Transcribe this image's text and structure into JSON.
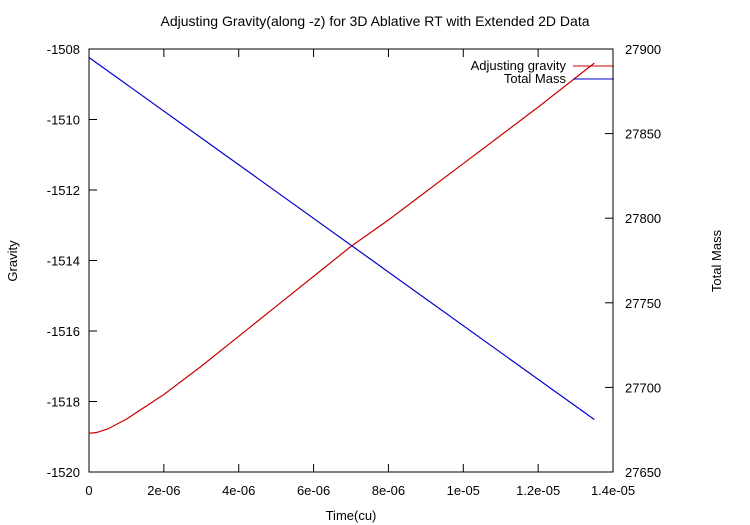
{
  "chart_data": {
    "type": "line",
    "title": "Adjusting Gravity(along -z) for 3D Ablative RT with Extended 2D Data",
    "xlabel": "Time(cu)",
    "ylabel": "Gravity",
    "y2label": "Total Mass",
    "xlim": [
      0,
      1.4e-05
    ],
    "ylim": [
      -1520,
      -1508
    ],
    "y2lim": [
      27650,
      27900
    ],
    "x_ticks": [
      "0",
      "2e-06",
      "4e-06",
      "6e-06",
      "8e-06",
      "1e-05",
      "1.2e-05",
      "1.4e-05"
    ],
    "x_tick_values": [
      0,
      2e-06,
      4e-06,
      6e-06,
      8e-06,
      1e-05,
      1.2e-05,
      1.4e-05
    ],
    "y_ticks": [
      "-1508",
      "-1510",
      "-1512",
      "-1514",
      "-1516",
      "-1518",
      "-1520"
    ],
    "y_tick_values": [
      -1508,
      -1510,
      -1512,
      -1514,
      -1516,
      -1518,
      -1520
    ],
    "y2_ticks": [
      "27900",
      "27850",
      "27800",
      "27750",
      "27700",
      "27650"
    ],
    "y2_tick_values": [
      27900,
      27850,
      27800,
      27750,
      27700,
      27650
    ],
    "grid": false,
    "legend_position": "top-right",
    "series": [
      {
        "name": "Adjusting gravity",
        "axis": "left",
        "color": "#cc0000",
        "x": [
          0,
          2e-07,
          5e-07,
          1e-06,
          2e-06,
          3e-06,
          4e-06,
          5e-06,
          6e-06,
          7e-06,
          8e-06,
          9e-06,
          1e-05,
          1.1e-05,
          1.2e-05,
          1.35e-05
        ],
        "y": [
          -1518.9,
          -1518.88,
          -1518.78,
          -1518.5,
          -1517.8,
          -1517.0,
          -1516.15,
          -1515.3,
          -1514.45,
          -1513.6,
          -1512.85,
          -1512.05,
          -1511.25,
          -1510.45,
          -1509.65,
          -1508.4
        ]
      },
      {
        "name": "Total Mass",
        "axis": "right",
        "color": "#0000cc",
        "x": [
          0,
          1.35e-05
        ],
        "y": [
          27895,
          27681
        ]
      }
    ]
  }
}
